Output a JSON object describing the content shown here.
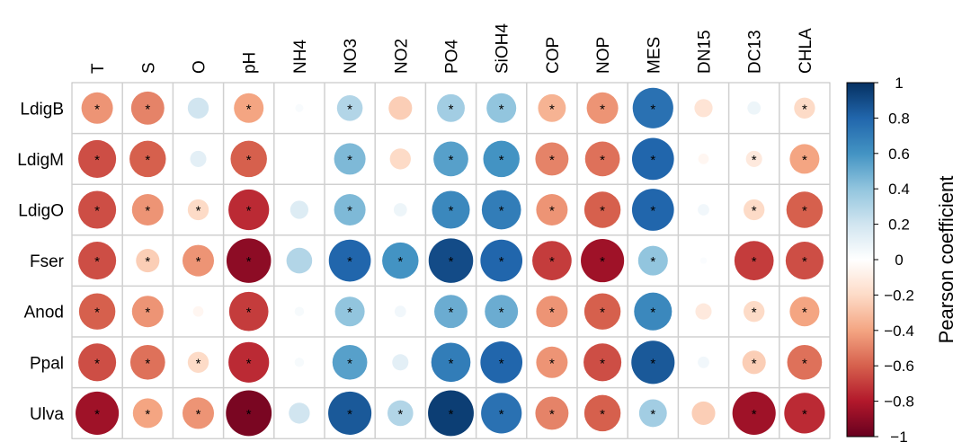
{
  "chart_data": {
    "type": "heatmap",
    "style": "circle-correlation-matrix",
    "title": "",
    "columns": [
      "T",
      "S",
      "O",
      "pH",
      "NH4",
      "NO3",
      "NO2",
      "PO4",
      "SiOH4",
      "COP",
      "NOP",
      "MES",
      "DN15",
      "DC13",
      "CHLA"
    ],
    "rows": [
      "LdigB",
      "LdigM",
      "LdigO",
      "Fser",
      "Anod",
      "Ppal",
      "Ulva"
    ],
    "values": [
      [
        -0.45,
        -0.5,
        0.2,
        -0.4,
        0.03,
        0.3,
        -0.25,
        0.35,
        0.4,
        -0.35,
        -0.45,
        0.75,
        -0.15,
        0.08,
        -0.2
      ],
      [
        -0.65,
        -0.6,
        0.12,
        -0.6,
        0.0,
        0.45,
        -0.2,
        0.55,
        0.6,
        -0.5,
        -0.55,
        0.8,
        -0.05,
        -0.12,
        -0.4
      ],
      [
        -0.65,
        -0.45,
        -0.2,
        -0.75,
        0.15,
        0.45,
        0.08,
        0.65,
        0.7,
        -0.45,
        -0.6,
        0.8,
        0.06,
        -0.2,
        -0.6
      ],
      [
        -0.65,
        -0.25,
        -0.45,
        -0.9,
        0.3,
        0.8,
        0.6,
        0.9,
        0.8,
        -0.7,
        -0.85,
        0.4,
        0.02,
        -0.7,
        -0.65
      ],
      [
        -0.6,
        -0.45,
        -0.05,
        -0.7,
        0.04,
        0.4,
        0.06,
        0.5,
        0.5,
        -0.45,
        -0.6,
        0.65,
        -0.12,
        -0.2,
        -0.4
      ],
      [
        -0.65,
        -0.55,
        -0.2,
        -0.75,
        0.04,
        0.55,
        0.12,
        0.7,
        0.8,
        -0.45,
        -0.65,
        0.85,
        0.06,
        -0.25,
        -0.55
      ],
      [
        -0.85,
        -0.4,
        -0.45,
        -0.95,
        0.2,
        0.85,
        0.3,
        0.95,
        0.75,
        -0.5,
        -0.6,
        0.35,
        -0.25,
        -0.85,
        -0.75
      ]
    ],
    "significant": [
      [
        true,
        true,
        false,
        true,
        false,
        true,
        false,
        true,
        true,
        true,
        true,
        true,
        false,
        false,
        true
      ],
      [
        true,
        true,
        false,
        true,
        false,
        true,
        false,
        true,
        true,
        true,
        true,
        true,
        false,
        true,
        true
      ],
      [
        true,
        true,
        true,
        true,
        false,
        true,
        false,
        true,
        true,
        true,
        true,
        true,
        false,
        true,
        true
      ],
      [
        true,
        true,
        true,
        true,
        false,
        true,
        true,
        true,
        true,
        true,
        true,
        true,
        false,
        true,
        true
      ],
      [
        true,
        true,
        false,
        true,
        false,
        true,
        false,
        true,
        true,
        true,
        true,
        true,
        false,
        true,
        true
      ],
      [
        true,
        true,
        true,
        true,
        false,
        true,
        false,
        true,
        true,
        true,
        true,
        true,
        false,
        true,
        true
      ],
      [
        true,
        true,
        true,
        true,
        false,
        true,
        true,
        true,
        true,
        true,
        true,
        true,
        false,
        true,
        true
      ]
    ],
    "significance_marker": "*",
    "color_scale": {
      "range": [
        -1,
        1
      ],
      "stops": [
        "#67001f",
        "#b2182b",
        "#d6604d",
        "#f4a582",
        "#fddbc7",
        "#ffffff",
        "#d1e5f0",
        "#92c5de",
        "#4393c3",
        "#2166ac",
        "#053061"
      ]
    },
    "legend": {
      "title": "Pearson coefficient",
      "placement": "right",
      "ticks": [
        "1",
        "0.8",
        "0.6",
        "0.4",
        "0.2",
        "0",
        "−0.2",
        "−0.4",
        "−0.6",
        "−0.8",
        "−1"
      ]
    },
    "grid": true
  }
}
